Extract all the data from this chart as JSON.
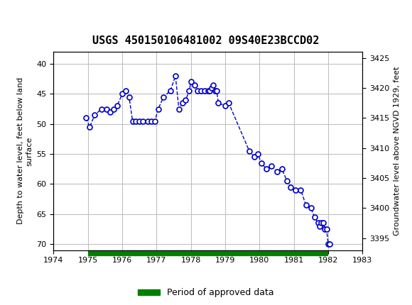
{
  "title": "USGS 450150106481002 09S40E23BCCD02",
  "xlabel": "",
  "ylabel_left": "Depth to water level, feet below land\nsurface",
  "ylabel_right": "Groundwater level above NGVD 1929, feet",
  "xlim": [
    1974,
    1983
  ],
  "ylim_left": [
    71,
    38
  ],
  "ylim_right": [
    3393,
    3426
  ],
  "xticks": [
    1974,
    1975,
    1976,
    1977,
    1978,
    1979,
    1980,
    1981,
    1982,
    1983
  ],
  "yticks_left": [
    40,
    45,
    50,
    55,
    60,
    65,
    70
  ],
  "yticks_right": [
    3395,
    3400,
    3405,
    3410,
    3415,
    3420,
    3425
  ],
  "data_x": [
    1974.95,
    1975.05,
    1975.2,
    1975.4,
    1975.55,
    1975.65,
    1975.75,
    1975.85,
    1976.0,
    1976.1,
    1976.2,
    1976.3,
    1976.4,
    1976.5,
    1976.6,
    1976.75,
    1976.85,
    1976.95,
    1977.05,
    1977.2,
    1977.4,
    1977.55,
    1977.65,
    1977.75,
    1977.85,
    1977.95,
    1978.0,
    1978.1,
    1978.2,
    1978.3,
    1978.4,
    1978.5,
    1978.55,
    1978.6,
    1978.65,
    1978.7,
    1978.75,
    1978.8,
    1979.0,
    1979.1,
    1979.7,
    1979.85,
    1979.95,
    1980.05,
    1980.2,
    1980.35,
    1980.5,
    1980.65,
    1980.8,
    1980.9,
    1981.05,
    1981.2,
    1981.35,
    1981.5,
    1981.6,
    1981.7,
    1981.75,
    1981.8,
    1981.85,
    1981.9,
    1981.95,
    1982.0,
    1982.05
  ],
  "data_y": [
    49.0,
    50.5,
    48.5,
    47.5,
    47.5,
    48.0,
    47.5,
    47.0,
    45.0,
    44.5,
    45.5,
    49.5,
    49.5,
    49.5,
    49.5,
    49.5,
    49.5,
    49.5,
    47.5,
    45.5,
    44.5,
    42.0,
    47.5,
    46.5,
    46.0,
    44.5,
    43.0,
    43.5,
    44.5,
    44.5,
    44.5,
    44.5,
    44.5,
    44.0,
    43.5,
    44.5,
    44.5,
    46.5,
    47.0,
    46.5,
    54.5,
    55.5,
    55.0,
    56.5,
    57.5,
    57.0,
    58.0,
    57.5,
    59.5,
    60.5,
    61.0,
    61.0,
    63.5,
    64.0,
    65.5,
    66.5,
    67.0,
    66.5,
    66.5,
    67.5,
    67.5,
    70.0,
    70.0
  ],
  "approved_bar_start": 1975.0,
  "approved_bar_end": 1982.0,
  "approved_bar_y": 71.5,
  "line_color": "#0000CC",
  "dot_color": "#0000CC",
  "approved_color": "#008000",
  "header_color": "#006040",
  "background_color": "#ffffff",
  "grid_color": "#c0c0c0"
}
